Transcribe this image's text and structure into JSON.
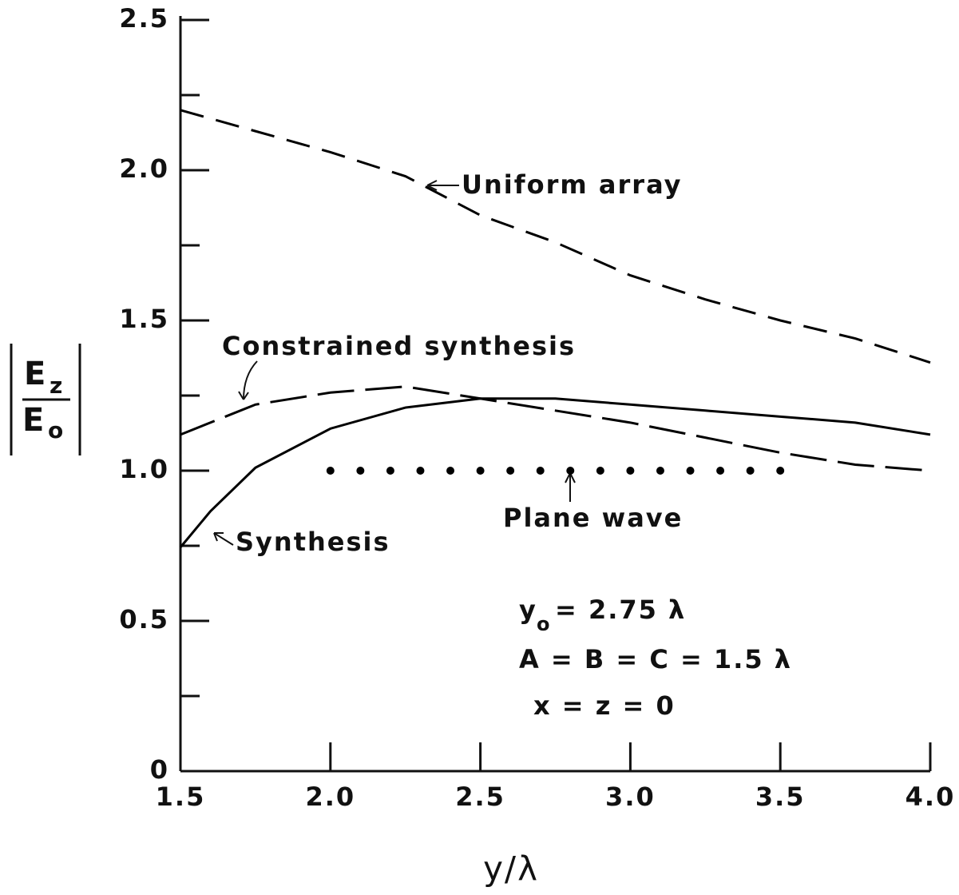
{
  "chart_data": {
    "type": "line",
    "xlabel": "y/λ",
    "ylabel": {
      "top": "E",
      "top_sub": "z",
      "bottom": "E",
      "bottom_sub": "o"
    },
    "xlim": [
      1.5,
      4.0
    ],
    "ylim": [
      0,
      2.5
    ],
    "xticks": [
      1.5,
      {
        "value": 2,
        "label": "2.0"
      },
      2.5,
      {
        "value": 3,
        "label": "3.0"
      },
      3.5,
      {
        "value": 4,
        "label": "4.0"
      }
    ],
    "yticks": [
      0,
      0.5,
      {
        "value": 1,
        "label": "1.0"
      },
      1.5,
      {
        "value": 2,
        "label": "2.0"
      },
      2.5
    ],
    "yticks_minor": [
      0.25,
      0.75,
      1.25,
      1.75,
      2.25
    ],
    "series": [
      {
        "name": "Uniform array",
        "color": "#000000",
        "style": "dashed",
        "x": [
          1.5,
          1.75,
          2.0,
          2.25,
          2.5,
          2.75,
          3.0,
          3.25,
          3.5,
          3.75,
          4.0
        ],
        "values": [
          2.2,
          2.13,
          2.06,
          1.98,
          1.85,
          1.76,
          1.65,
          1.57,
          1.5,
          1.44,
          1.36
        ]
      },
      {
        "name": "Constrained synthesis",
        "color": "#000000",
        "style": "longdash",
        "x": [
          1.5,
          1.75,
          2.0,
          2.25,
          2.5,
          2.75,
          3.0,
          3.25,
          3.5,
          3.75,
          4.0
        ],
        "values": [
          1.12,
          1.22,
          1.26,
          1.28,
          1.24,
          1.2,
          1.16,
          1.11,
          1.06,
          1.02,
          1.0
        ]
      },
      {
        "name": "Synthesis",
        "color": "#000000",
        "style": "solid",
        "x": [
          1.5,
          1.6,
          1.75,
          2.0,
          2.25,
          2.5,
          2.75,
          3.0,
          3.25,
          3.5,
          3.75,
          4.0
        ],
        "values": [
          0.745,
          0.865,
          1.01,
          1.14,
          1.21,
          1.24,
          1.24,
          1.22,
          1.2,
          1.18,
          1.16,
          1.12
        ]
      },
      {
        "name": "Plane wave",
        "color": "#000000",
        "style": "dots",
        "x": [
          2.0,
          2.1,
          2.2,
          2.3,
          2.4,
          2.5,
          2.6,
          2.7,
          2.8,
          2.9,
          3.0,
          3.1,
          3.2,
          3.3,
          3.4,
          3.5
        ],
        "values": [
          1,
          1,
          1,
          1,
          1,
          1,
          1,
          1,
          1,
          1,
          1,
          1,
          1,
          1,
          1,
          1
        ]
      }
    ],
    "annotations": {
      "y0_main": "y",
      "y0_sub": "o",
      "y0_rest": "= 2.75 λ",
      "abc": "A = B = C = 1.5 λ",
      "xz": "x = z = 0"
    }
  }
}
